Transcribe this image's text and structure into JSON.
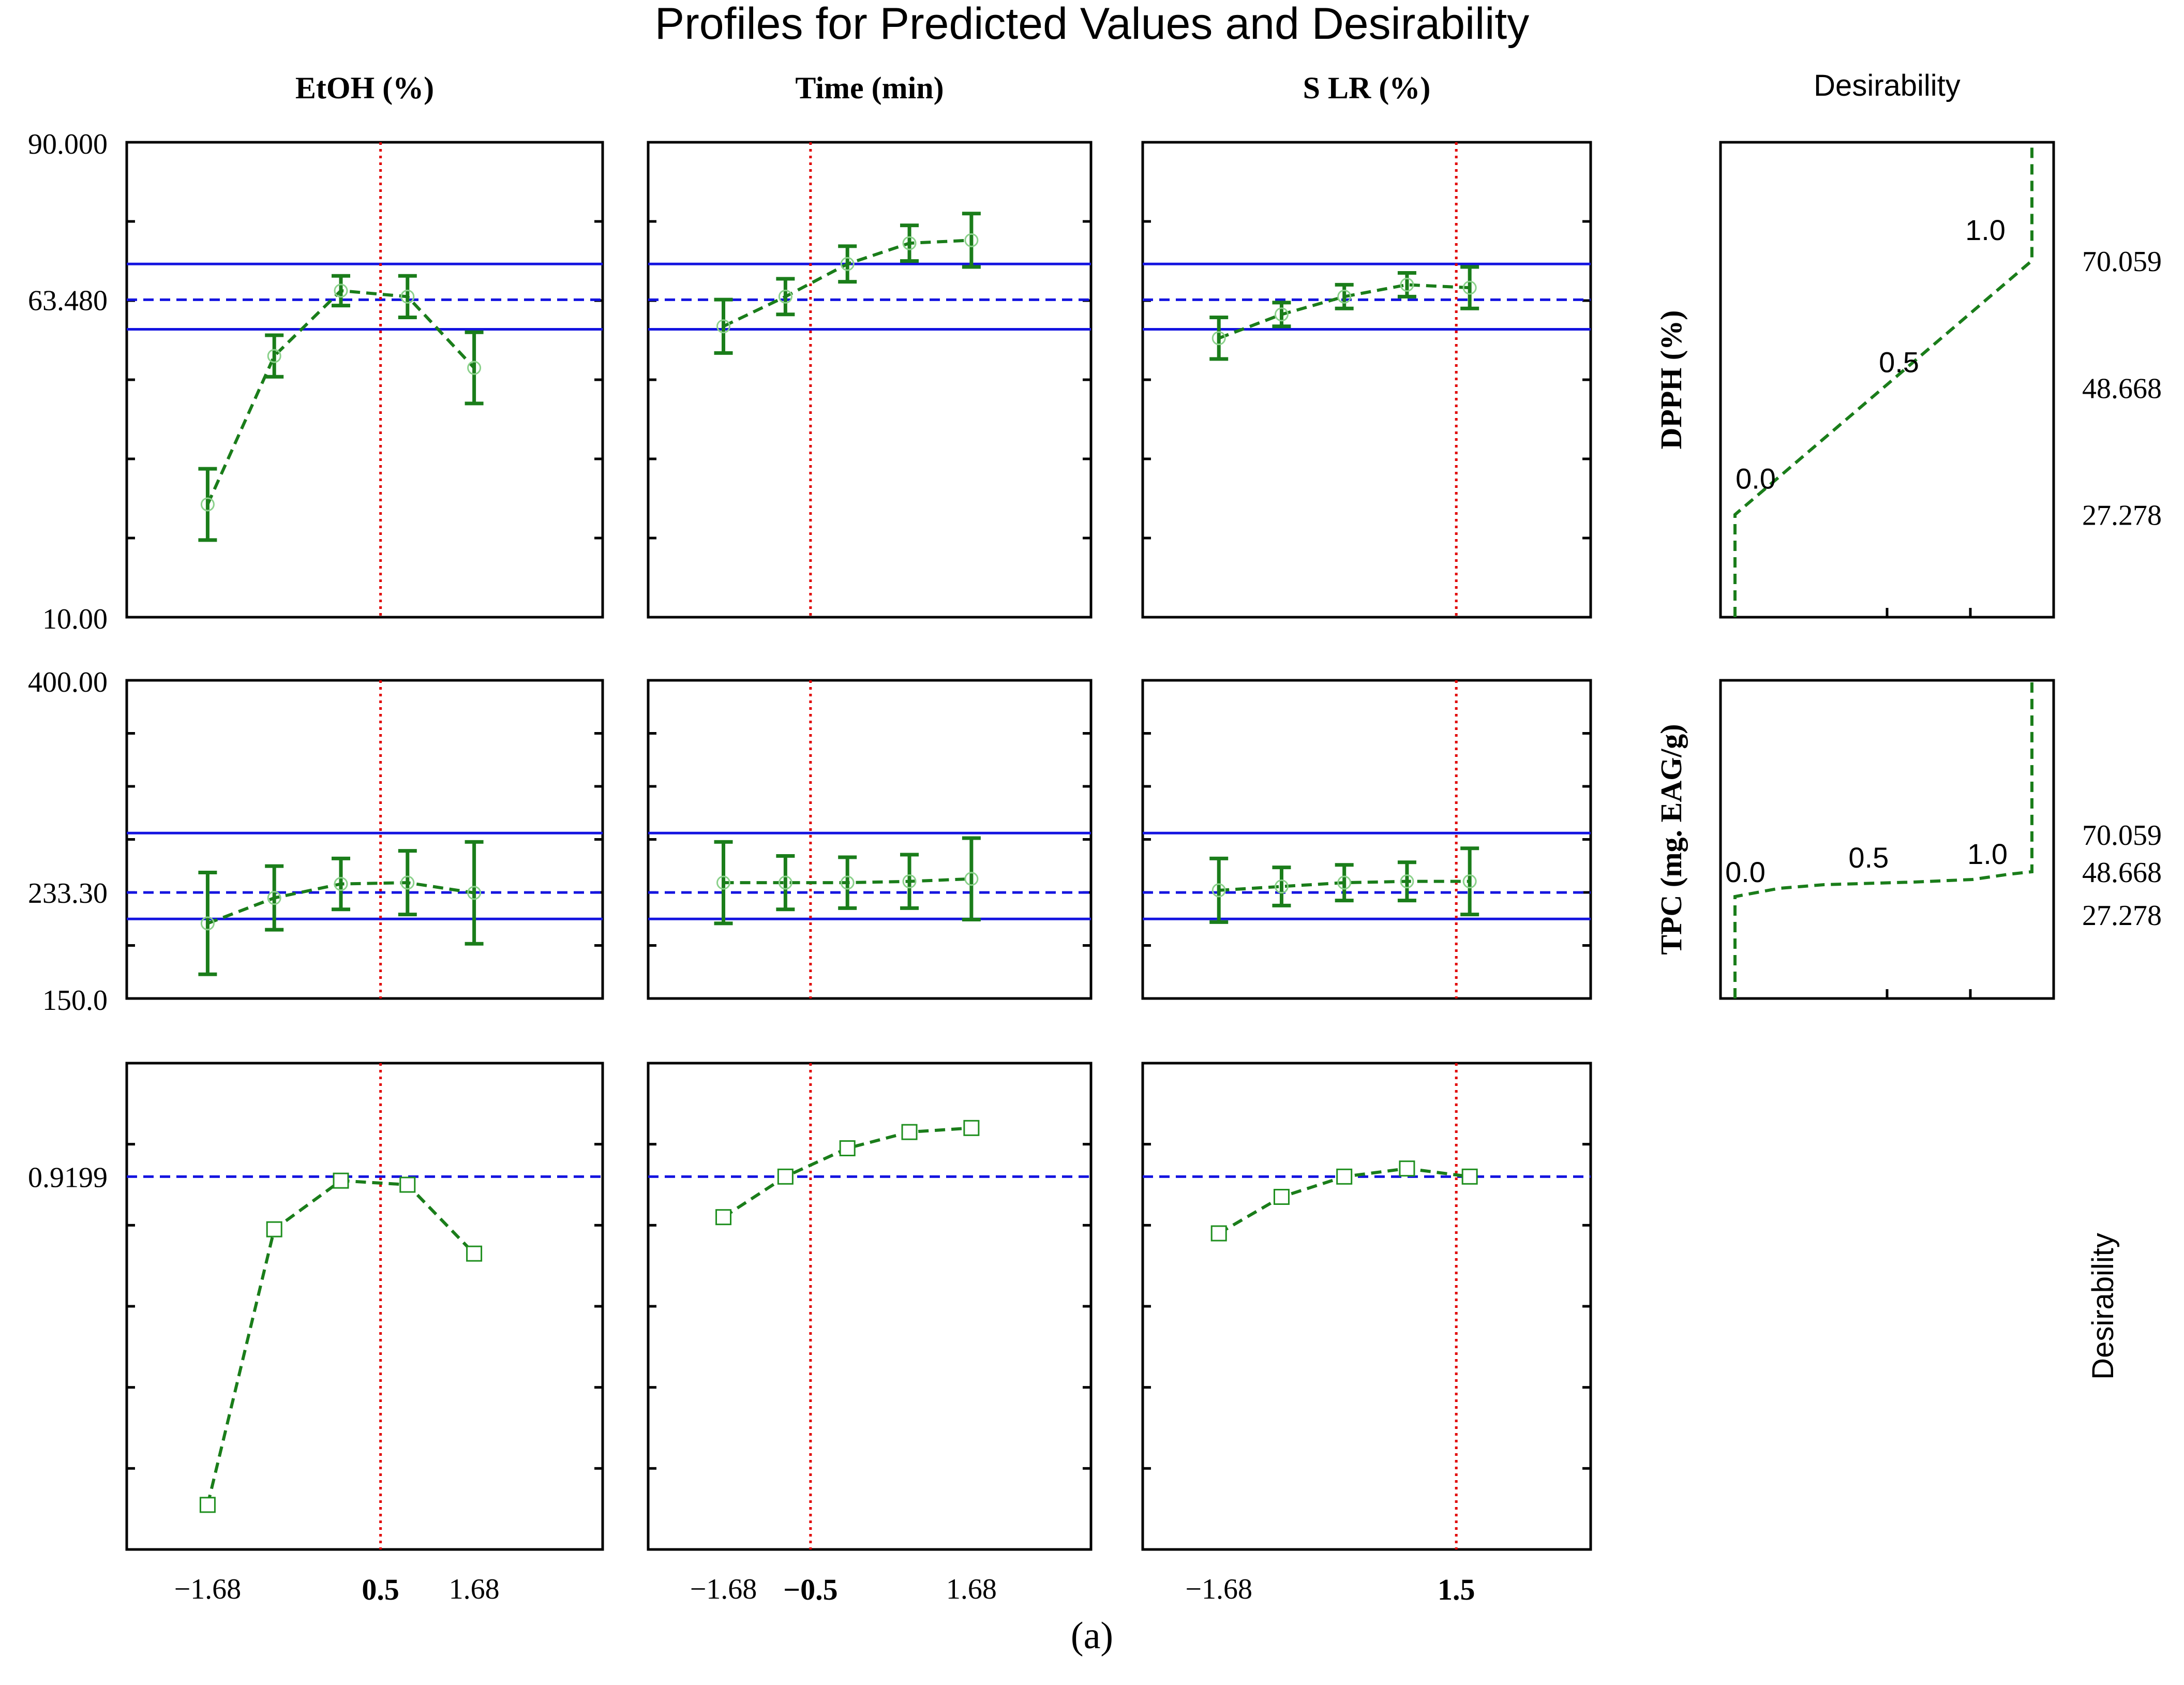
{
  "title": "Profiles for Predicted Values and Desirability",
  "caption": "(a)",
  "colors": {
    "series": "#1a7d1a",
    "limits": "#1414e0",
    "current": "#e00000",
    "axis": "#000000"
  },
  "columns": [
    {
      "label": "EtOH (%)",
      "current": 0.5,
      "current_label": "0.5",
      "ticks": [
        -1.68,
        1.68
      ],
      "tick_labels": [
        "−1.68",
        "1.68"
      ]
    },
    {
      "label": "Time (min)",
      "current": -0.5,
      "current_label": "−0.5",
      "ticks": [
        -1.68,
        1.68
      ],
      "tick_labels": [
        "−1.68",
        "1.68"
      ]
    },
    {
      "label": "S LR (%)",
      "current": 1.5,
      "current_label": "1.5",
      "ticks": [
        -1.68
      ],
      "tick_labels": [
        "−1.68"
      ]
    }
  ],
  "desirability_header": "Desirability",
  "desirability_axis_label": "Desirability",
  "rows": [
    {
      "response": "DPPH (%)",
      "ylim": [
        10.0,
        90.0
      ],
      "tick_labels": {
        "top": "90.000",
        "mid": "63.480",
        "bottom": "10.00"
      },
      "mid_value": 63.48,
      "ci": [
        58.5,
        69.5
      ]
    },
    {
      "response": "TPC (mg. EAG/g)",
      "ylim": [
        150.0,
        400.0
      ],
      "tick_labels": {
        "top": "400.00",
        "mid": "233.30",
        "bottom": "150.0"
      },
      "mid_value": 233.3,
      "ci": [
        212.5,
        280.0
      ]
    },
    {
      "response": "Desirability",
      "ylim": [
        0.0,
        1.2
      ],
      "tick_labels": {
        "mid": "0.9199"
      },
      "mid_value": 0.9199
    }
  ],
  "desirability_panels": [
    {
      "response": "DPPH (%)",
      "tick_labels": [
        "70.059",
        "48.668",
        "27.278"
      ],
      "d_labels": [
        "0.0",
        "0.5",
        "1.0"
      ]
    },
    {
      "response": "TPC (mg. EAG/g)",
      "tick_labels": [
        "70.059",
        "48.668",
        "27.278"
      ],
      "d_labels": [
        "0.0",
        "0.5",
        "1.0"
      ]
    }
  ],
  "chart_data": {
    "type": "line",
    "title": "Profiles for Predicted Values and Desirability",
    "x": [
      -1.68,
      -0.84,
      0.0,
      0.84,
      1.68
    ],
    "profiles": [
      {
        "row": "DPPH (%)",
        "column": "EtOH (%)",
        "y": [
          29.0,
          54.0,
          65.0,
          64.0,
          52.0
        ],
        "err": [
          6.0,
          3.5,
          2.5,
          3.5,
          6.0
        ]
      },
      {
        "row": "DPPH (%)",
        "column": "Time (min)",
        "y": [
          59.0,
          64.0,
          69.5,
          73.0,
          73.5
        ],
        "err": [
          4.5,
          3.0,
          3.0,
          3.0,
          4.5
        ]
      },
      {
        "row": "DPPH (%)",
        "column": "S LR (%)",
        "y": [
          57.0,
          61.0,
          64.0,
          66.0,
          65.5
        ],
        "err": [
          3.5,
          2.0,
          2.0,
          2.0,
          3.5
        ]
      },
      {
        "row": "TPC (mg. EAG/g)",
        "column": "EtOH (%)",
        "y": [
          209.0,
          229.0,
          240.0,
          241.0,
          233.0
        ],
        "err": [
          40.0,
          25.0,
          20.0,
          25.0,
          40.0
        ]
      },
      {
        "row": "TPC (mg. EAG/g)",
        "column": "Time (min)",
        "y": [
          241.0,
          241.0,
          241.0,
          242.0,
          244.0
        ],
        "err": [
          32.0,
          21.0,
          20.0,
          21.0,
          32.0
        ]
      },
      {
        "row": "TPC (mg. EAG/g)",
        "column": "S LR (%)",
        "y": [
          235.0,
          238.0,
          241.0,
          242.0,
          242.0
        ],
        "err": [
          25.0,
          15.0,
          14.0,
          15.0,
          26.0
        ]
      },
      {
        "row": "Desirability",
        "column": "EtOH (%)",
        "y": [
          0.11,
          0.79,
          0.91,
          0.9,
          0.73
        ]
      },
      {
        "row": "Desirability",
        "column": "Time (min)",
        "y": [
          0.82,
          0.92,
          0.99,
          1.03,
          1.04
        ]
      },
      {
        "row": "Desirability",
        "column": "S LR (%)",
        "y": [
          0.78,
          0.87,
          0.92,
          0.94,
          0.92
        ]
      }
    ],
    "current_settings": {
      "EtOH (%)": 0.5,
      "Time (min)": -0.5,
      "S LR (%)": 1.5
    },
    "desirability_functions": [
      {
        "response": "DPPH (%)",
        "low": 27.278,
        "mid": 48.668,
        "high": 70.059
      },
      {
        "response": "TPC (mg. EAG/g)",
        "low": 27.278,
        "mid": 48.668,
        "high": 70.059
      }
    ]
  }
}
